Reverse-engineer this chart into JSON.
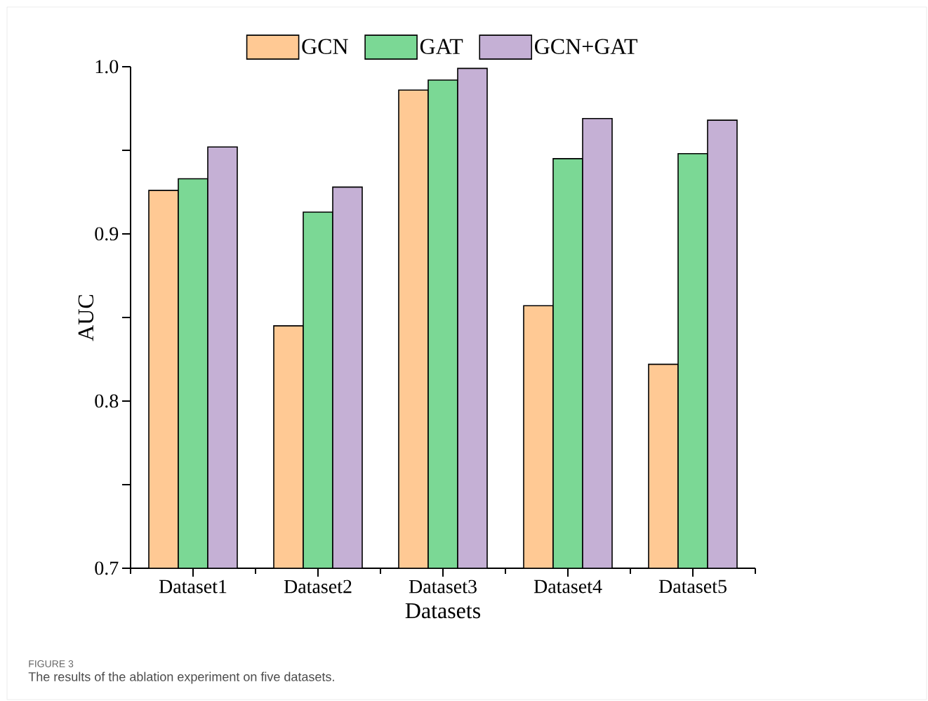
{
  "chart_data": {
    "type": "bar",
    "xlabel": "Datasets",
    "ylabel": "AUC",
    "categories": [
      "Dataset1",
      "Dataset2",
      "Dataset3",
      "Dataset4",
      "Dataset5"
    ],
    "series": [
      {
        "name": "GCN",
        "color": "#ffc994",
        "values": [
          0.926,
          0.845,
          0.986,
          0.857,
          0.822
        ]
      },
      {
        "name": "GAT",
        "color": "#7bd895",
        "values": [
          0.933,
          0.913,
          0.992,
          0.945,
          0.948
        ]
      },
      {
        "name": "GCN+GAT",
        "color": "#c5b0d5",
        "values": [
          0.952,
          0.928,
          0.999,
          0.969,
          0.968
        ]
      }
    ],
    "ylim": [
      0.7,
      1.0
    ],
    "yticks": [
      {
        "value": 0.7,
        "label": "0.7"
      },
      {
        "value": 0.75,
        "label": null
      },
      {
        "value": 0.8,
        "label": "0.8"
      },
      {
        "value": 0.85,
        "label": null
      },
      {
        "value": 0.9,
        "label": "0.9"
      },
      {
        "value": 0.95,
        "label": null
      },
      {
        "value": 1.0,
        "label": "1.0"
      }
    ],
    "grid": false,
    "legend": "top",
    "annotations": [
      "FIGURE 3",
      "The results of the ablation experiment on five datasets."
    ]
  }
}
